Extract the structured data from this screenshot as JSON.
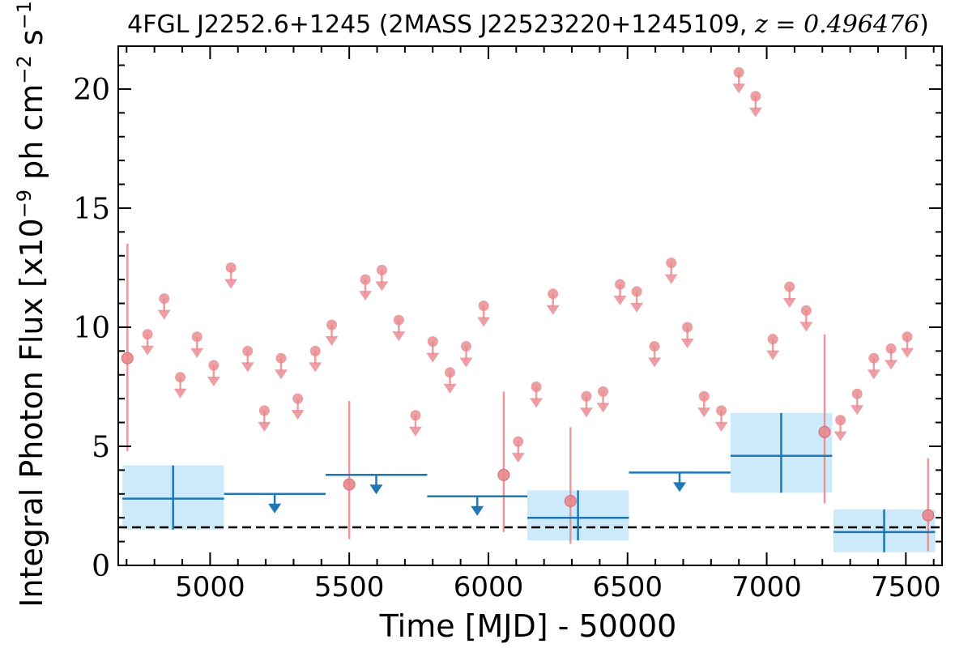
{
  "chart_data": {
    "type": "scatter",
    "title": {
      "prefix": "4FGL J2252.6+1245 (2MASS J22523220+1245109, ",
      "math": "z = 0.496476",
      "suffix": ")"
    },
    "xlabel": "Time [MJD] - 50000",
    "ylabel": {
      "base": "Integral Photon Flux [x10",
      "exp1": "−9",
      "mid": " ph cm",
      "exp2": "−2",
      "s": " s",
      "exp3": "−1",
      "end": "]"
    },
    "xlim": [
      4670,
      7630
    ],
    "ylim": [
      0,
      21.8
    ],
    "xticks": [
      5000,
      5500,
      6000,
      6500,
      7000,
      7500
    ],
    "xtick_labels": [
      "5000",
      "5500",
      "6000",
      "6500",
      "7000",
      "7500"
    ],
    "yticks": [
      0,
      5,
      10,
      15,
      20
    ],
    "ytick_labels": [
      "0",
      "5",
      "10",
      "15",
      "20"
    ],
    "grid": false,
    "reference_line": {
      "y": 1.6,
      "style": "dashed",
      "color": "#000000"
    },
    "colors": {
      "short_bins": "#e8868c",
      "long_bins": "#1f77b4",
      "long_bin_band": "#cdeafb"
    },
    "series": [
      {
        "bin_type": "short",
        "detections": [
          {
            "x": 4703,
            "y": 8.7,
            "ylo": 4.8,
            "yhi": 13.5
          },
          {
            "x": 5500,
            "y": 3.4,
            "ylo": 1.1,
            "yhi": 6.9
          },
          {
            "x": 6055,
            "y": 3.8,
            "ylo": 1.4,
            "yhi": 7.3
          },
          {
            "x": 6295,
            "y": 2.7,
            "ylo": 0.9,
            "yhi": 5.8
          },
          {
            "x": 7208,
            "y": 5.6,
            "ylo": 2.6,
            "yhi": 9.7
          },
          {
            "x": 7580,
            "y": 2.1,
            "ylo": 0.6,
            "yhi": 4.5
          }
        ],
        "upper_limits": [
          {
            "x": 4775,
            "y": 9.7
          },
          {
            "x": 4835,
            "y": 11.2
          },
          {
            "x": 4893,
            "y": 7.9
          },
          {
            "x": 4953,
            "y": 9.6
          },
          {
            "x": 5013,
            "y": 8.4
          },
          {
            "x": 5075,
            "y": 12.5
          },
          {
            "x": 5135,
            "y": 9.0
          },
          {
            "x": 5195,
            "y": 6.5
          },
          {
            "x": 5255,
            "y": 8.7
          },
          {
            "x": 5315,
            "y": 7.0
          },
          {
            "x": 5378,
            "y": 9.0
          },
          {
            "x": 5437,
            "y": 10.1
          },
          {
            "x": 5558,
            "y": 12.0
          },
          {
            "x": 5617,
            "y": 12.4
          },
          {
            "x": 5678,
            "y": 10.3
          },
          {
            "x": 5738,
            "y": 6.3
          },
          {
            "x": 5800,
            "y": 9.4
          },
          {
            "x": 5862,
            "y": 8.1
          },
          {
            "x": 5920,
            "y": 9.2
          },
          {
            "x": 5983,
            "y": 10.9
          },
          {
            "x": 6107,
            "y": 5.2
          },
          {
            "x": 6172,
            "y": 7.5
          },
          {
            "x": 6232,
            "y": 11.4
          },
          {
            "x": 6352,
            "y": 7.1
          },
          {
            "x": 6412,
            "y": 7.3
          },
          {
            "x": 6473,
            "y": 11.8
          },
          {
            "x": 6533,
            "y": 11.5
          },
          {
            "x": 6597,
            "y": 9.2
          },
          {
            "x": 6657,
            "y": 12.7
          },
          {
            "x": 6715,
            "y": 10.0
          },
          {
            "x": 6775,
            "y": 7.1
          },
          {
            "x": 6837,
            "y": 6.5
          },
          {
            "x": 6900,
            "y": 20.7
          },
          {
            "x": 6960,
            "y": 19.7
          },
          {
            "x": 7022,
            "y": 9.5
          },
          {
            "x": 7082,
            "y": 11.7
          },
          {
            "x": 7142,
            "y": 10.7
          },
          {
            "x": 7265,
            "y": 6.1
          },
          {
            "x": 7325,
            "y": 7.2
          },
          {
            "x": 7385,
            "y": 8.7
          },
          {
            "x": 7447,
            "y": 9.1
          },
          {
            "x": 7505,
            "y": 9.6
          }
        ]
      },
      {
        "bin_type": "long",
        "detections": [
          {
            "x0": 4685,
            "x1": 5050,
            "x": 4867,
            "y": 2.8,
            "ylo": 1.5,
            "yhi": 4.2
          },
          {
            "x0": 6140,
            "x1": 6505,
            "x": 6322,
            "y": 2.0,
            "ylo": 1.05,
            "yhi": 3.15
          },
          {
            "x0": 6870,
            "x1": 7235,
            "x": 7052,
            "y": 4.6,
            "ylo": 3.05,
            "yhi": 6.4
          },
          {
            "x0": 7240,
            "x1": 7605,
            "x": 7422,
            "y": 1.4,
            "ylo": 0.55,
            "yhi": 2.35
          }
        ],
        "upper_limits": [
          {
            "x0": 5050,
            "x1": 5415,
            "x": 5232,
            "y": 3.0
          },
          {
            "x0": 5415,
            "x1": 5780,
            "x": 5597,
            "y": 3.8
          },
          {
            "x0": 5780,
            "x1": 6140,
            "x": 5960,
            "y": 2.9
          },
          {
            "x0": 6505,
            "x1": 6870,
            "x": 6687,
            "y": 3.9
          }
        ]
      }
    ]
  }
}
